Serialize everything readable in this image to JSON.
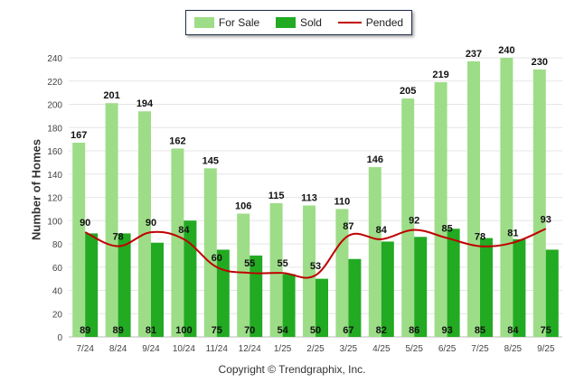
{
  "chart_data": {
    "type": "bar",
    "title": "",
    "xlabel": "",
    "ylabel": "Number of Homes",
    "ylim": [
      0,
      240
    ],
    "ytick_step": 20,
    "categories": [
      "7/24",
      "8/24",
      "9/24",
      "10/24",
      "11/24",
      "12/24",
      "1/25",
      "2/25",
      "3/25",
      "4/25",
      "5/25",
      "6/25",
      "7/25",
      "8/25",
      "9/25"
    ],
    "series": [
      {
        "name": "For Sale",
        "type": "bar",
        "color": "#9ddd88",
        "values": [
          167,
          201,
          194,
          162,
          145,
          106,
          115,
          113,
          110,
          146,
          205,
          219,
          237,
          240,
          230
        ]
      },
      {
        "name": "Sold",
        "type": "bar",
        "color": "#22aa22",
        "values": [
          89,
          89,
          81,
          100,
          75,
          70,
          54,
          50,
          67,
          82,
          86,
          93,
          85,
          84,
          75
        ]
      },
      {
        "name": "Pended",
        "type": "line",
        "color": "#c00000",
        "values": [
          90,
          78,
          90,
          84,
          60,
          55,
          55,
          53,
          87,
          84,
          92,
          85,
          78,
          81,
          93
        ]
      }
    ],
    "legend": {
      "position": "top-center",
      "labels": [
        "For Sale",
        "Sold",
        "Pended"
      ]
    },
    "grid": true
  },
  "footer": {
    "copyright": "Copyright © Trendgraphix, Inc."
  }
}
